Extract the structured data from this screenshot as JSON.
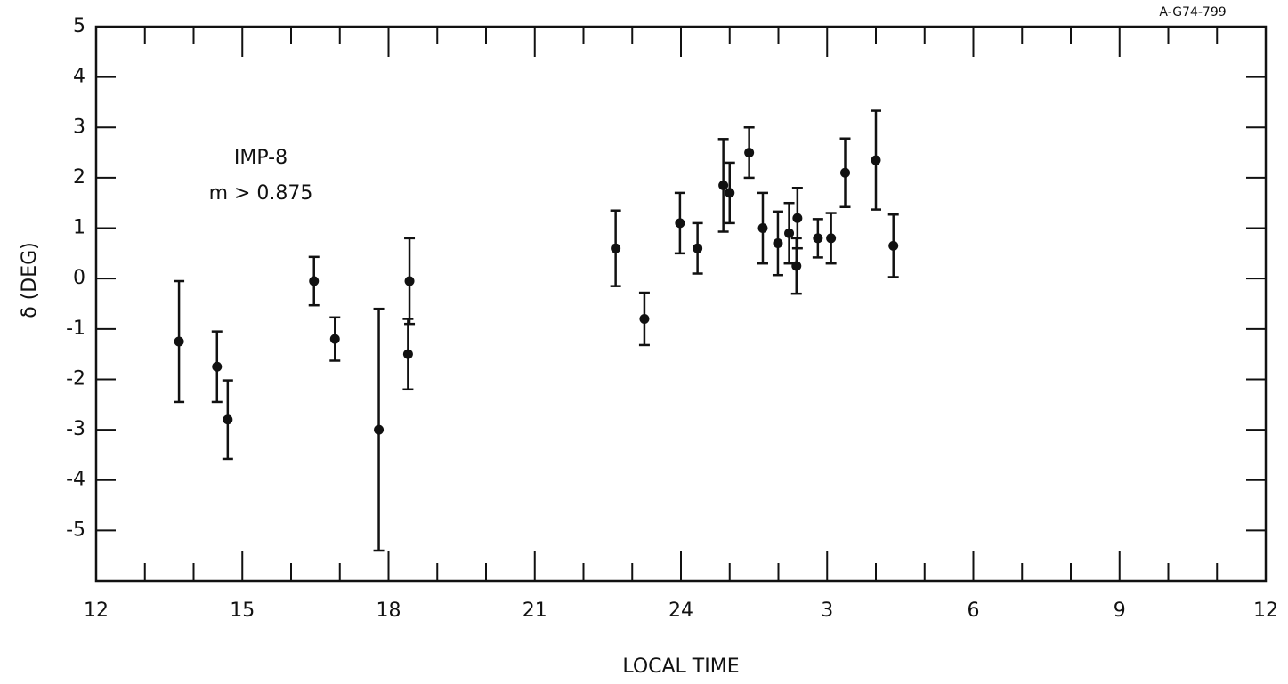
{
  "chart_data": {
    "type": "scatter",
    "id_label": "A-G74-799",
    "annotations": [
      "IMP-8",
      "m > 0.875"
    ],
    "xlabel": "LOCAL TIME",
    "ylabel": "δ (DEG)",
    "color": "#111111",
    "x": [
      13.7,
      14.48,
      14.7,
      16.47,
      16.9,
      17.8,
      18.4,
      18.43,
      22.66,
      23.25,
      23.98,
      24.34,
      24.87,
      25.0,
      25.4,
      25.68,
      25.99,
      26.22,
      26.39,
      26.37,
      26.81,
      27.08,
      27.37,
      28.0,
      28.36
    ],
    "values": [
      -1.25,
      -1.75,
      -2.8,
      -0.05,
      -1.2,
      -3.0,
      -1.5,
      -0.05,
      0.6,
      -0.8,
      1.1,
      0.6,
      1.85,
      1.7,
      2.5,
      1.0,
      0.7,
      0.9,
      1.2,
      0.25,
      0.8,
      0.8,
      2.1,
      2.35,
      0.65
    ],
    "errors": [
      1.2,
      0.7,
      0.78,
      0.48,
      0.43,
      2.4,
      0.7,
      0.85,
      0.75,
      0.52,
      0.6,
      0.5,
      0.92,
      0.6,
      0.5,
      0.7,
      0.63,
      0.6,
      0.6,
      0.55,
      0.38,
      0.5,
      0.68,
      0.98,
      0.62
    ],
    "xlim": [
      12,
      36
    ],
    "ylim": [
      -6,
      5
    ],
    "xticks": [
      12,
      15,
      18,
      21,
      24,
      {
        "value": 27,
        "label": "3"
      },
      {
        "value": 30,
        "label": "6"
      },
      {
        "value": 33,
        "label": "9"
      },
      {
        "value": 36,
        "label": "12"
      }
    ],
    "xminorticks": [
      13,
      14,
      16,
      17,
      19,
      20,
      22,
      23,
      25,
      26,
      28,
      29,
      31,
      32,
      34,
      35
    ],
    "yticks": [
      -5,
      -4,
      -3,
      -2,
      -1,
      0,
      1,
      2,
      3,
      4,
      5
    ]
  }
}
